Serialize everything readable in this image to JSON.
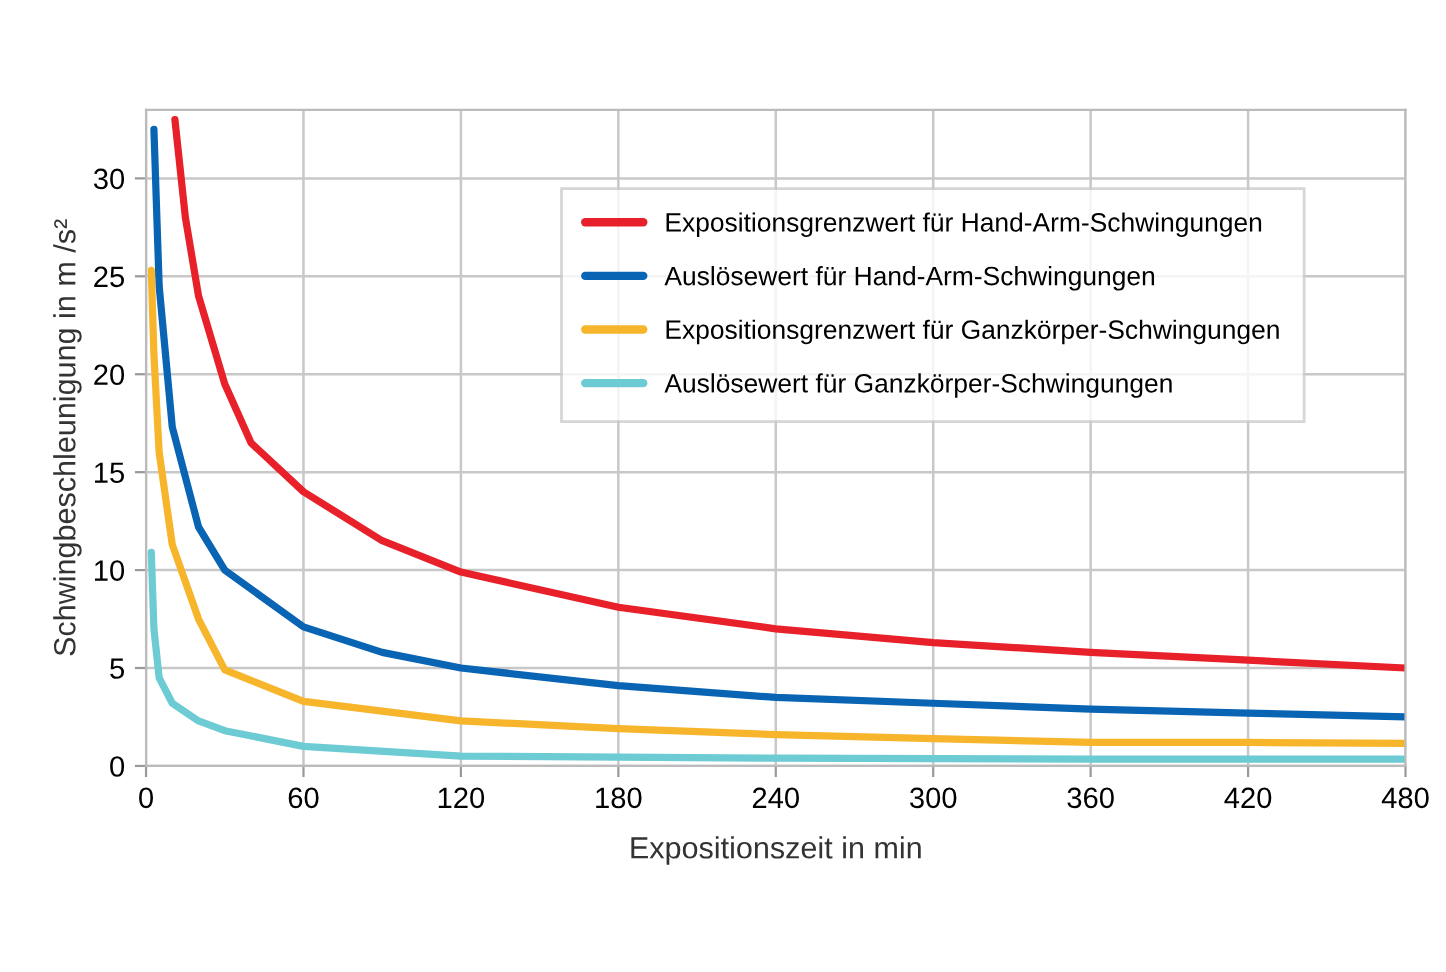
{
  "chart_data": {
    "type": "line",
    "xlabel": "Expositionszeit in min",
    "ylabel": "Schwingbeschleunigung in m /s²",
    "xlim": [
      0,
      480
    ],
    "ylim": [
      0,
      33.5
    ],
    "xticks": [
      0,
      60,
      120,
      180,
      240,
      300,
      360,
      420,
      480
    ],
    "yticks": [
      0,
      5,
      10,
      15,
      20,
      25,
      30
    ],
    "grid": true,
    "legend": "top right",
    "marker": "none",
    "line_style": "solid",
    "series": [
      {
        "name": "Expositionsgrenzwert für Hand-Arm-Schwingungen",
        "color": "#e8202a",
        "x": [
          11,
          15,
          20,
          30,
          40,
          60,
          90,
          120,
          180,
          240,
          300,
          360,
          420,
          480
        ],
        "values": [
          33,
          28,
          24,
          19.5,
          16.5,
          14,
          11.5,
          9.9,
          8.1,
          7.0,
          6.3,
          5.8,
          5.4,
          5.0
        ]
      },
      {
        "name": "Auslösewert für Hand-Arm-Schwingungen",
        "color": "#0a64b4",
        "x": [
          3,
          5,
          10,
          20,
          30,
          60,
          90,
          120,
          180,
          240,
          300,
          360,
          420,
          480
        ],
        "values": [
          32.5,
          24.5,
          17.3,
          12.2,
          10,
          7.1,
          5.8,
          5.0,
          4.1,
          3.5,
          3.2,
          2.9,
          2.7,
          2.5
        ]
      },
      {
        "name": "Expositionsgrenzwert für Ganzkörper-Schwingungen",
        "color": "#f7b52c",
        "x": [
          2,
          3,
          5,
          10,
          20,
          30,
          60,
          120,
          180,
          240,
          300,
          360,
          420,
          480
        ],
        "values": [
          25.3,
          21,
          16,
          11.3,
          7.5,
          4.9,
          3.3,
          2.3,
          1.9,
          1.6,
          1.4,
          1.2,
          1.2,
          1.15
        ]
      },
      {
        "name": "Auslösewert für Ganzkörper-Schwingungen",
        "color": "#6ccbd3",
        "x": [
          2,
          3,
          5,
          10,
          20,
          30,
          60,
          120,
          180,
          240,
          360,
          480
        ],
        "values": [
          10.9,
          7,
          4.5,
          3.2,
          2.3,
          1.8,
          1.0,
          0.5,
          0.45,
          0.4,
          0.35,
          0.35
        ]
      }
    ]
  }
}
